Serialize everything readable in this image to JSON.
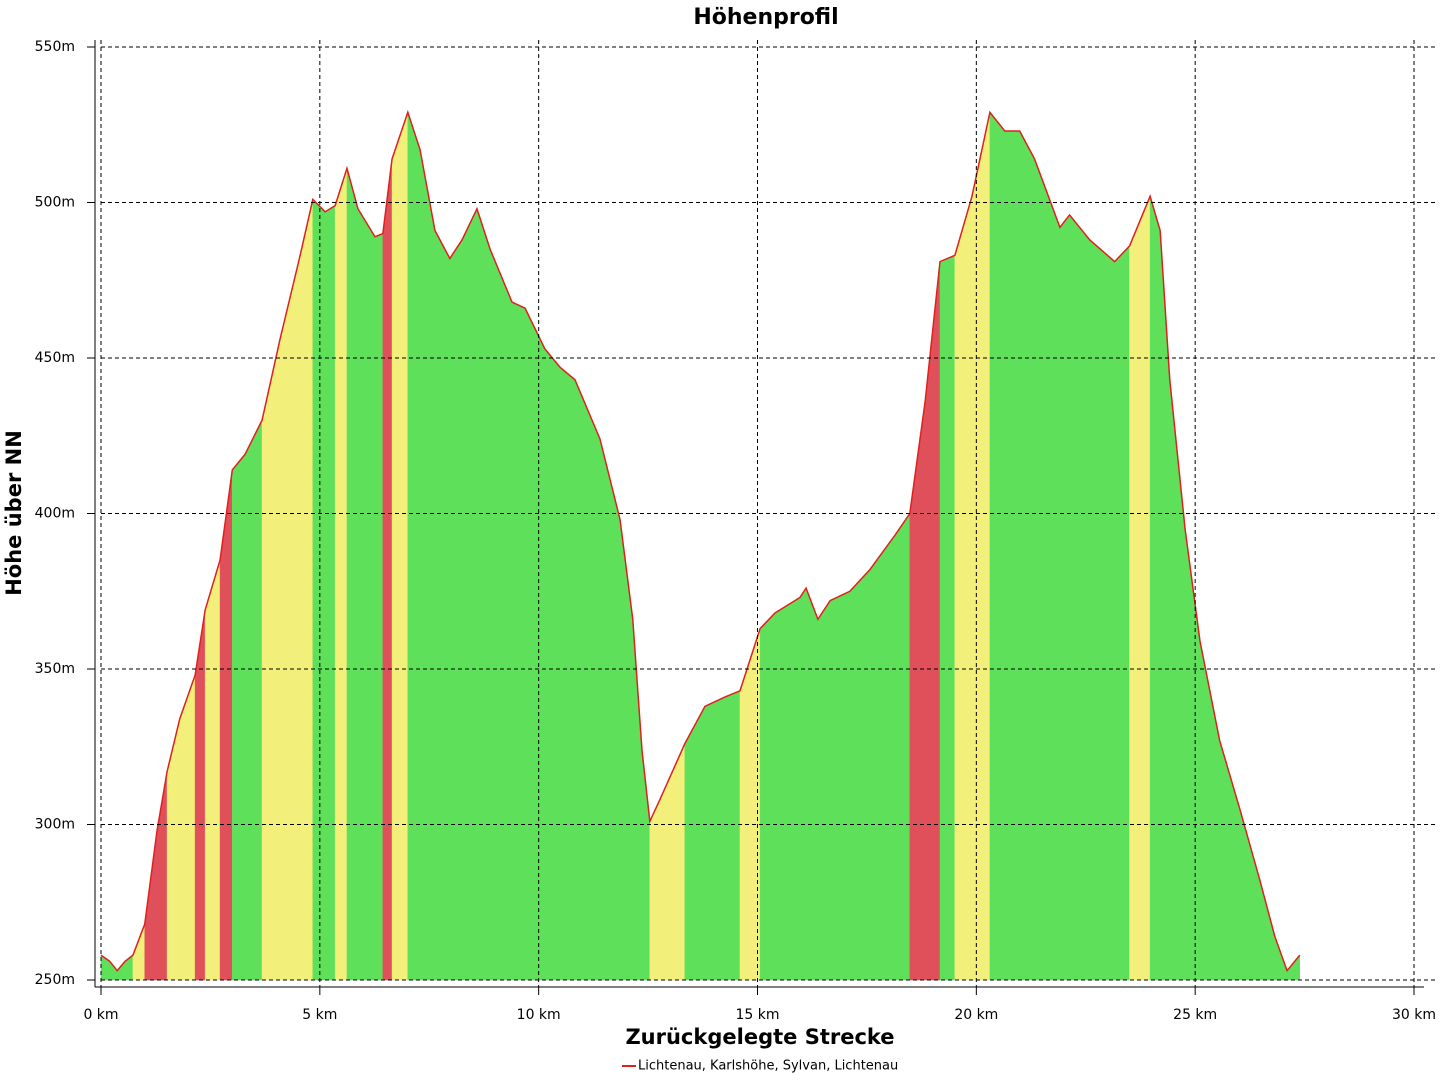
{
  "chart_data": {
    "type": "area",
    "title": "Höhenprofil",
    "x_label": "Zurückgelegte Strecke",
    "y_label": "Höhe über NN",
    "x": [
      0,
      0.2,
      0.37,
      0.55,
      0.73,
      1.0,
      1.28,
      1.51,
      1.8,
      2.15,
      2.38,
      2.72,
      3.0,
      3.29,
      3.68,
      4.09,
      4.55,
      4.84,
      5.12,
      5.35,
      5.62,
      5.87,
      6.26,
      6.44,
      6.65,
      7.01,
      7.29,
      7.63,
      7.97,
      8.25,
      8.59,
      8.89,
      9.39,
      9.69,
      10.14,
      10.49,
      10.83,
      11.4,
      11.86,
      12.15,
      12.36,
      12.54,
      12.77,
      13.34,
      13.8,
      14.26,
      14.6,
      15.06,
      15.4,
      15.97,
      16.11,
      16.38,
      16.66,
      17.11,
      17.57,
      18.14,
      18.48,
      18.83,
      19.17,
      19.51,
      19.9,
      20.31,
      20.65,
      20.99,
      21.33,
      21.91,
      22.13,
      22.59,
      23.16,
      23.5,
      23.97,
      24.2,
      24.42,
      24.77,
      25.11,
      25.56,
      26.02,
      26.48,
      26.82,
      27.1,
      27.39
    ],
    "series": [
      {
        "name": "Lichtenau, Karlshöhe, Sylvan, Lichtenau",
        "color": "#e0201c",
        "values": [
          258,
          256,
          253,
          256,
          258,
          268,
          298,
          317,
          334,
          348,
          369,
          385,
          414,
          419,
          430,
          456,
          483,
          501,
          497,
          499,
          511,
          498,
          489,
          490,
          514,
          529,
          517,
          491,
          482,
          488,
          498,
          485,
          468,
          466,
          453,
          447,
          443,
          424,
          398,
          366,
          324,
          301,
          308,
          326,
          338,
          341,
          343,
          363,
          368,
          373,
          376,
          366,
          372,
          375,
          382,
          393,
          400,
          436,
          481,
          483,
          502,
          529,
          523,
          523,
          514,
          492,
          496,
          488,
          481,
          486,
          502,
          491,
          443,
          395,
          359,
          327,
          305,
          282,
          264,
          253,
          258
        ]
      }
    ],
    "gradient_colors": [
      "#5fe05a",
      "#f2f07a",
      "#e0505a"
    ],
    "xlim": [
      0,
      30
    ],
    "ylim": [
      250,
      550
    ],
    "xticks": [
      {
        "value": 0,
        "label": "0 km"
      },
      {
        "value": 5,
        "label": "5 km"
      },
      {
        "value": 10,
        "label": "10 km"
      },
      {
        "value": 15,
        "label": "15 km"
      },
      {
        "value": 20,
        "label": "20 km"
      },
      {
        "value": 25,
        "label": "25 km"
      },
      {
        "value": 30,
        "label": "30 km"
      }
    ],
    "yticks": [
      {
        "value": 250,
        "label": "250m"
      },
      {
        "value": 300,
        "label": "300m"
      },
      {
        "value": 350,
        "label": "350m"
      },
      {
        "value": 400,
        "label": "400m"
      },
      {
        "value": 450,
        "label": "450m"
      },
      {
        "value": 500,
        "label": "500m"
      },
      {
        "value": 550,
        "label": "550m"
      }
    ],
    "grid": true
  }
}
